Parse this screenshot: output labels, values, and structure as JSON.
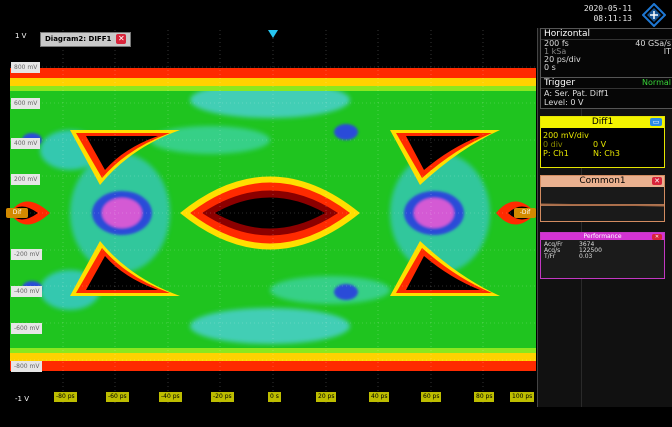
{
  "datetime": {
    "date": "2020-05-11",
    "time": "08:11:13"
  },
  "diagram": {
    "title": "Diagram2: DIFF1",
    "close": "✕",
    "scale_top": "1 V",
    "scale_bottom": "-1 V"
  },
  "y_axis": [
    "800 mV",
    "600 mV",
    "400 mV",
    "200 mV",
    "-200 mV",
    "-400 mV",
    "-600 mV",
    "-800 mV"
  ],
  "x_axis": [
    "-80 ps",
    "-60 ps",
    "-40 ps",
    "-20 ps",
    "0 s",
    "20 ps",
    "40 ps",
    "60 ps",
    "80 ps",
    "100 ps"
  ],
  "edge_labels": {
    "left": "Dif",
    "right": "-Dif"
  },
  "horizontal": {
    "title": "Horizontal",
    "time_scale": "200 fs",
    "sample_rate": "40 GSa/s",
    "record_length": "1 kSa",
    "mode": "IT",
    "time_per_div": "20 ps/div",
    "position": "0 s"
  },
  "trigger": {
    "title": "Trigger",
    "mode": "Normal",
    "source_line": "A:   Ser. Pat.  Diff1",
    "level": "Level: 0 V"
  },
  "diff1": {
    "title": "Diff1",
    "scale": "200 mV/div",
    "offset": "0 div",
    "offset_v": "0 V",
    "p": "P: Ch1",
    "n": "N: Ch3"
  },
  "common1": {
    "title": "Common1"
  },
  "performance": {
    "title": "Performance",
    "rows": [
      {
        "label": "Acq/Fr",
        "value": "3674"
      },
      {
        "label": "Acq/s",
        "value": "122500"
      },
      {
        "label": "T/Fr",
        "value": "0.03"
      }
    ]
  },
  "colors": {
    "accent_yellow": "#f3f300",
    "trigger_green": "#37d437",
    "close_red": "#d8243a",
    "perf_magenta": "#d233d2"
  }
}
